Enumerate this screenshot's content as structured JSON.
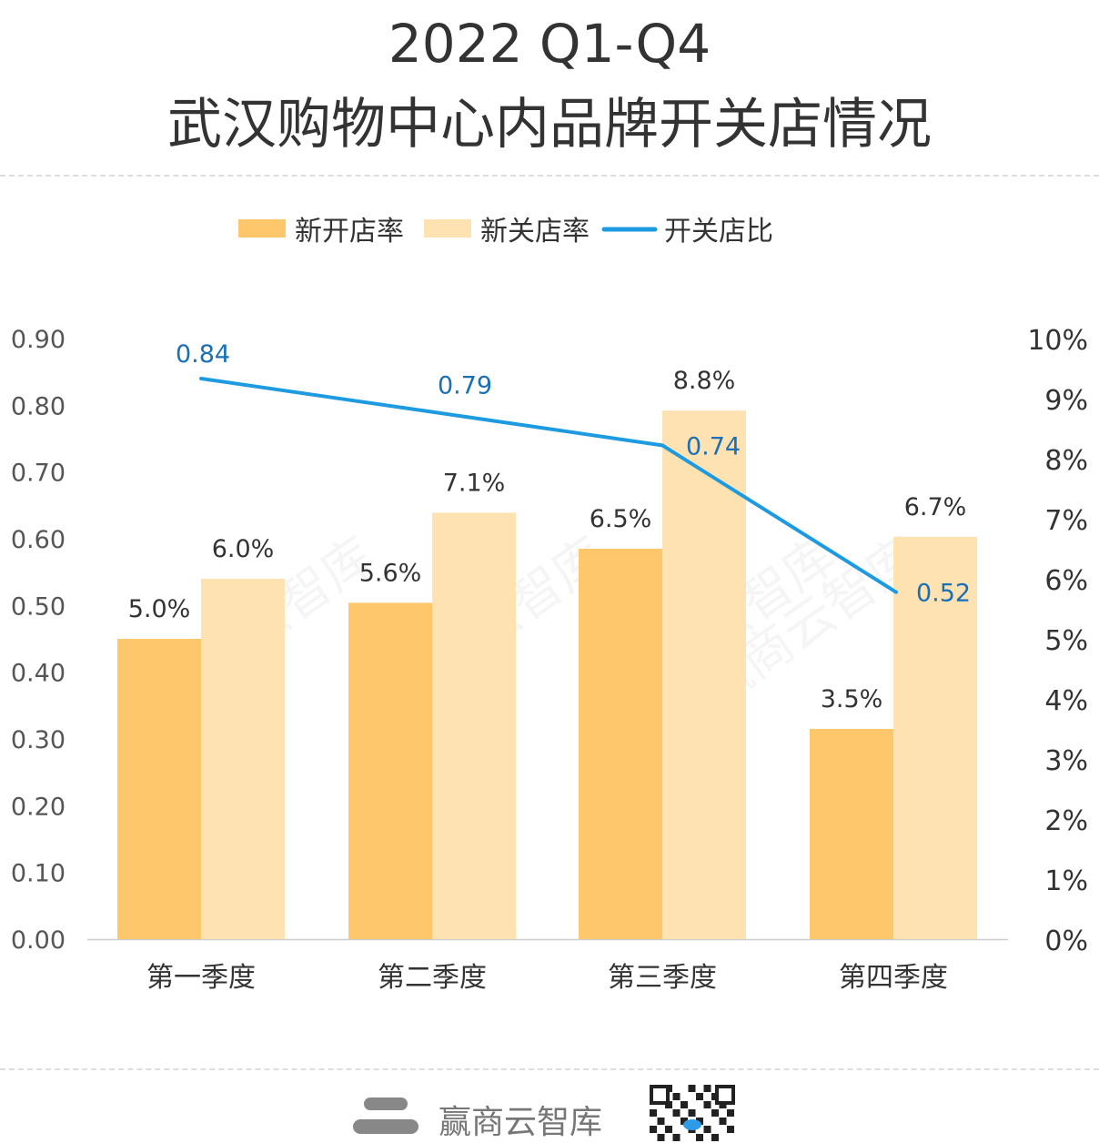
{
  "chart_data": {
    "type": "bar",
    "title": "2022 Q1-Q4",
    "subtitle": "武汉购物中心内品牌开关店情况",
    "categories": [
      "第一季度",
      "第二季度",
      "第三季度",
      "第四季度"
    ],
    "series": [
      {
        "name": "新开店率",
        "type": "bar",
        "axis": "right",
        "values": [
          5.0,
          5.6,
          6.5,
          3.5
        ],
        "labels": [
          "5.0%",
          "5.6%",
          "6.5%",
          "3.5%"
        ],
        "color": "#FFC76B"
      },
      {
        "name": "新关店率",
        "type": "bar",
        "axis": "right",
        "values": [
          6.0,
          7.1,
          8.8,
          6.7
        ],
        "labels": [
          "6.0%",
          "7.1%",
          "8.8%",
          "6.7%"
        ],
        "color": "#FFE2B1"
      },
      {
        "name": "开关店比",
        "type": "line",
        "axis": "left",
        "values": [
          0.84,
          0.79,
          0.74,
          0.52
        ],
        "labels": [
          "0.84",
          "0.79",
          "0.74",
          "0.52"
        ],
        "color": "#1E9BE0"
      }
    ],
    "left_axis": {
      "ylim": [
        0,
        0.9
      ],
      "ticks": [
        "0.00",
        "0.10",
        "0.20",
        "0.30",
        "0.40",
        "0.50",
        "0.60",
        "0.70",
        "0.80",
        "0.90"
      ]
    },
    "right_axis": {
      "ylim": [
        0,
        10
      ],
      "ticks": [
        "0%",
        "1%",
        "2%",
        "3%",
        "4%",
        "5%",
        "6%",
        "7%",
        "8%",
        "9%",
        "10%"
      ]
    },
    "grid": false,
    "legend": "top-center"
  },
  "watermark": "赢商云智库",
  "footer": {
    "brand": "赢商云智库"
  }
}
